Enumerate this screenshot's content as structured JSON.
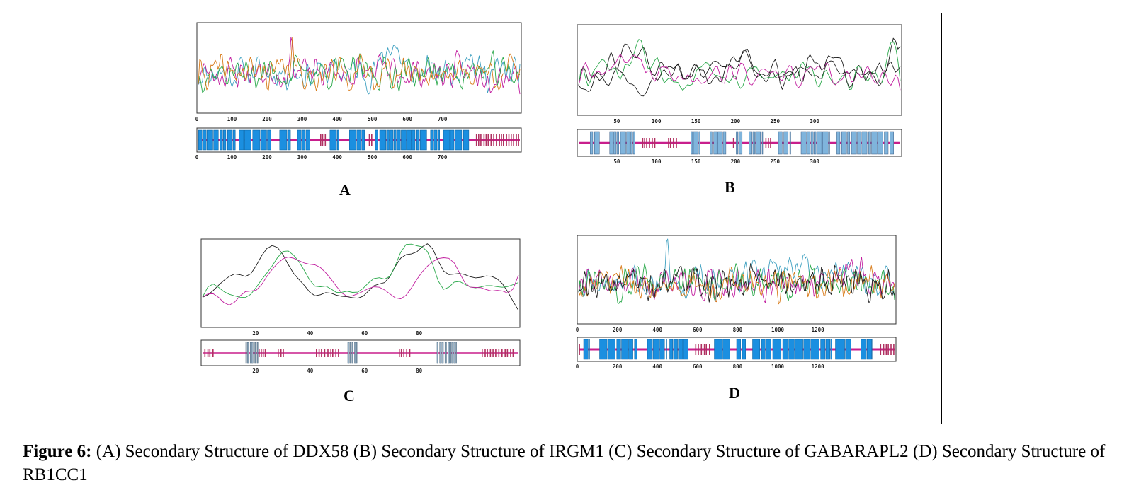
{
  "colors": {
    "helix": "#1b8fe0",
    "helix_light": "#7fb4dc",
    "coil": "#c81e8c",
    "strand": "#b03060",
    "coil_line": "#b018b8",
    "series": [
      "#1d1d1d",
      "#2ba94b",
      "#c11e9f",
      "#d87b19",
      "#3ea0c0"
    ]
  },
  "panels": [
    {
      "id": "A",
      "label": "A",
      "ticks": [
        "100",
        "200",
        "300",
        "400",
        "500",
        "600",
        "700"
      ],
      "chart_data": {
        "type": "line",
        "x_ticks": [
          0,
          100,
          200,
          300,
          400,
          500,
          600,
          700
        ],
        "x_range": [
          0,
          925
        ],
        "series": [
          {
            "values": []
          },
          {
            "values": []
          },
          {
            "values": []
          },
          {
            "values": []
          }
        ]
      }
    },
    {
      "id": "B",
      "label": "B",
      "ticks": [
        "50",
        "100",
        "150",
        "200",
        "250",
        "300"
      ],
      "chart_data": {
        "type": "line",
        "x_ticks": [
          50,
          100,
          150,
          200,
          250,
          300
        ],
        "x_range": [
          0,
          410
        ],
        "series": [
          {
            "values": []
          },
          {
            "values": []
          },
          {
            "values": []
          },
          {
            "values": []
          }
        ]
      }
    },
    {
      "id": "C",
      "label": "C",
      "ticks": [
        "20",
        "40",
        "60",
        "80"
      ],
      "chart_data": {
        "type": "line",
        "x_ticks": [
          20,
          40,
          60,
          80
        ],
        "x_range": [
          0,
          117
        ],
        "series": [
          {
            "values": []
          },
          {
            "values": []
          },
          {
            "values": []
          }
        ]
      }
    },
    {
      "id": "D",
      "label": "D",
      "ticks": [
        "200",
        "400",
        "600",
        "800",
        "1000",
        "1200"
      ],
      "chart_data": {
        "type": "line",
        "x_ticks": [
          0,
          200,
          400,
          600,
          800,
          1000,
          1200
        ],
        "x_range": [
          0,
          1590
        ],
        "series": [
          {
            "values": []
          },
          {
            "values": []
          },
          {
            "values": []
          },
          {
            "values": []
          },
          {
            "values": []
          }
        ]
      }
    }
  ],
  "caption": {
    "lead": "Figure 6:",
    "text": " (A) Secondary Structure of DDX58 (B) Secondary Structure of IRGM1 (C) Secondary Structure of GABARAPL2 (D) Secondary Structure of RB1CC1"
  }
}
